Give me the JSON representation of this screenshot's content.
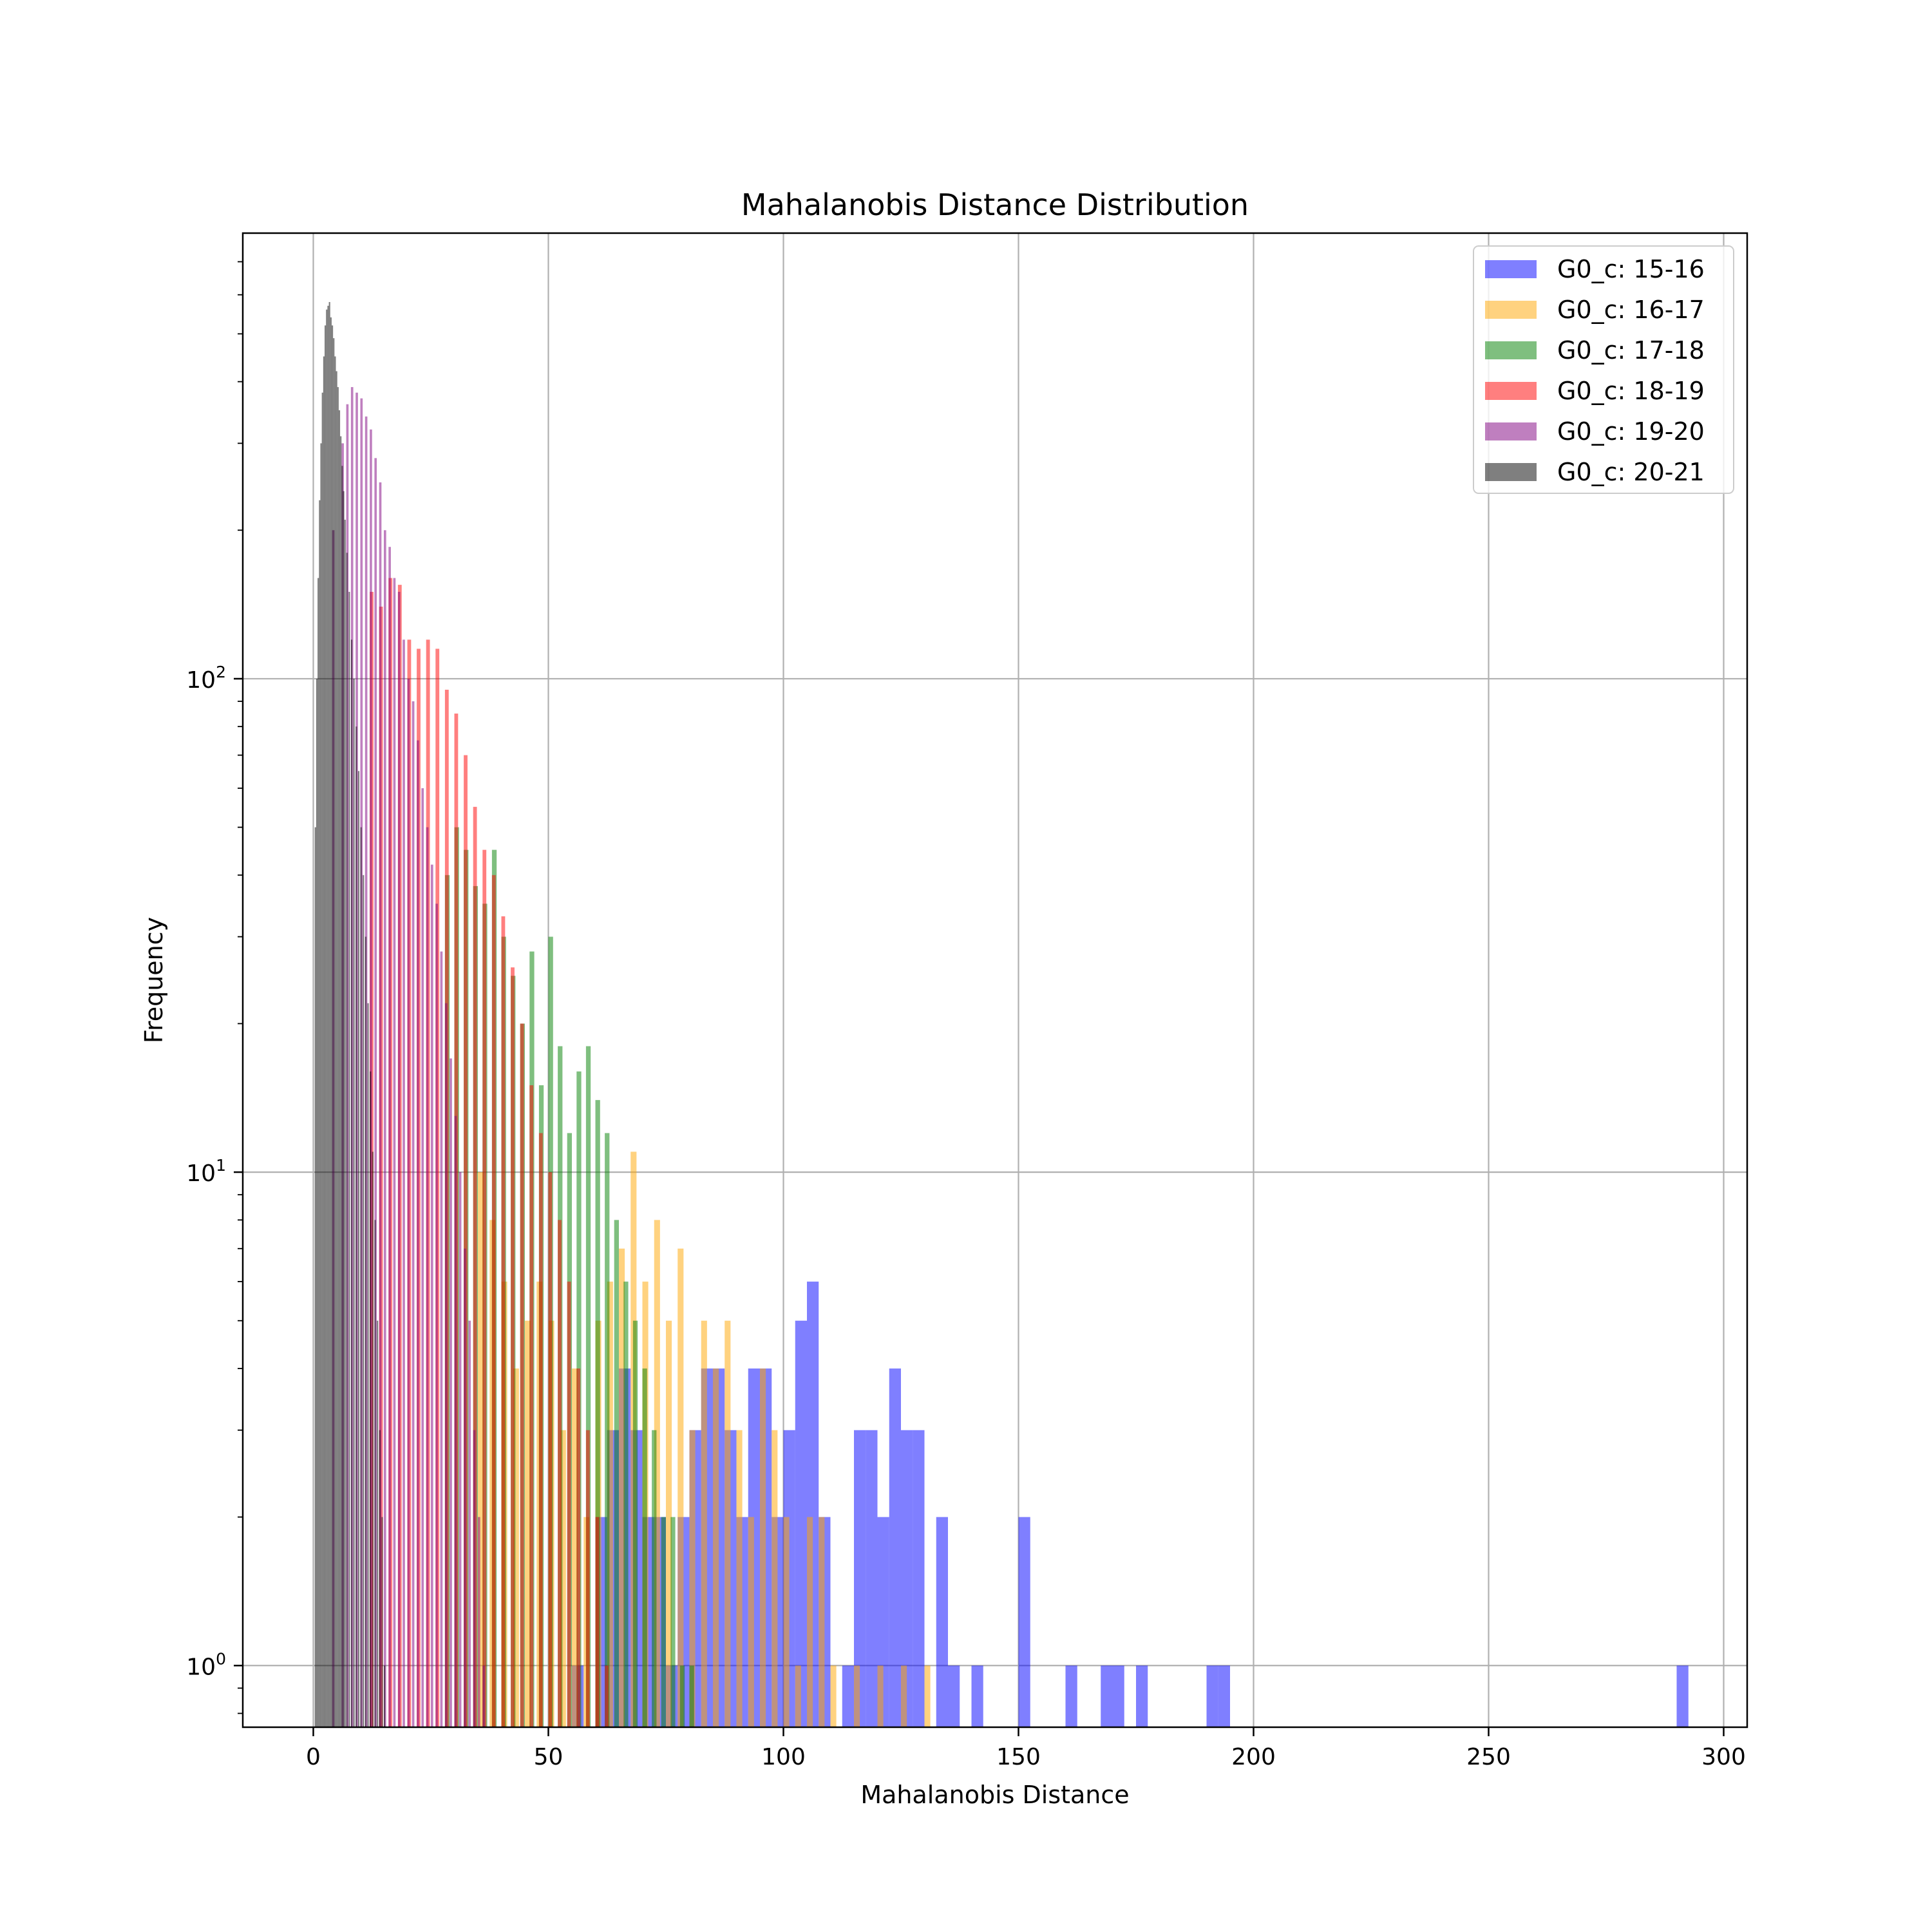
{
  "chart_data": {
    "type": "bar",
    "title": "Mahalanobis Distance Distribution",
    "xlabel": "Mahalanobis Distance",
    "ylabel": "Frequency",
    "yscale": "log",
    "xlim": [
      -15,
      305
    ],
    "ylim": [
      0.75,
      800
    ],
    "xticks": [
      0,
      50,
      100,
      150,
      200,
      250,
      300
    ],
    "xtick_labels": [
      "0",
      "50",
      "100",
      "150",
      "200",
      "250",
      "300"
    ],
    "yticks": [
      1,
      10,
      100
    ],
    "ytick_labels": [
      {
        "base": "10",
        "exp": "0"
      },
      {
        "base": "10",
        "exp": "1"
      },
      {
        "base": "10",
        "exp": "2"
      }
    ],
    "grid": true,
    "legend_position": "top-right",
    "series": [
      {
        "name": "G0_c: 15-16",
        "color": "#0000ff",
        "alpha": 0.5,
        "bin_width": 2.5,
        "bins": [
          [
            55,
            1
          ],
          [
            60,
            2
          ],
          [
            62.5,
            3
          ],
          [
            65,
            4
          ],
          [
            67.5,
            3
          ],
          [
            70,
            2
          ],
          [
            72.5,
            2
          ],
          [
            75,
            1
          ],
          [
            77.5,
            2
          ],
          [
            80,
            3
          ],
          [
            82.5,
            4
          ],
          [
            85,
            4
          ],
          [
            87.5,
            3
          ],
          [
            90,
            2
          ],
          [
            92.5,
            4
          ],
          [
            95,
            4
          ],
          [
            97.5,
            2
          ],
          [
            100,
            3
          ],
          [
            102.5,
            5
          ],
          [
            105,
            6
          ],
          [
            107.5,
            2
          ],
          [
            112.5,
            1
          ],
          [
            115,
            3
          ],
          [
            117.5,
            3
          ],
          [
            120,
            2
          ],
          [
            122.5,
            4
          ],
          [
            125,
            3
          ],
          [
            127.5,
            3
          ],
          [
            132.5,
            2
          ],
          [
            135,
            1
          ],
          [
            140,
            1
          ],
          [
            150,
            2
          ],
          [
            160,
            1
          ],
          [
            167.5,
            1
          ],
          [
            170,
            1
          ],
          [
            175,
            1
          ],
          [
            190,
            1
          ],
          [
            192.5,
            1
          ],
          [
            290,
            1
          ]
        ]
      },
      {
        "name": "G0_c: 16-17",
        "color": "#ffa500",
        "alpha": 0.5,
        "bin_width": 1.25,
        "bins": [
          [
            35,
            10
          ],
          [
            37.5,
            8
          ],
          [
            40,
            6
          ],
          [
            42.5,
            4
          ],
          [
            45,
            5
          ],
          [
            47.5,
            6
          ],
          [
            50,
            5
          ],
          [
            52.5,
            3
          ],
          [
            55,
            4
          ],
          [
            57.5,
            2
          ],
          [
            60,
            5
          ],
          [
            62.5,
            6
          ],
          [
            65,
            7
          ],
          [
            67.5,
            11
          ],
          [
            70,
            6
          ],
          [
            72.5,
            8
          ],
          [
            75,
            5
          ],
          [
            77.5,
            7
          ],
          [
            80,
            3
          ],
          [
            82.5,
            5
          ],
          [
            85,
            4
          ],
          [
            87.5,
            5
          ],
          [
            90,
            3
          ],
          [
            92.5,
            2
          ],
          [
            95,
            4
          ],
          [
            97.5,
            3
          ],
          [
            100,
            2
          ],
          [
            102.5,
            1
          ],
          [
            105,
            2
          ],
          [
            107.5,
            2
          ],
          [
            110,
            1
          ],
          [
            115,
            1
          ],
          [
            120,
            1
          ],
          [
            125,
            1
          ],
          [
            130,
            1
          ]
        ]
      },
      {
        "name": "G0_c: 17-18",
        "color": "#008000",
        "alpha": 0.5,
        "bin_width": 1.0,
        "bins": [
          [
            28,
            40
          ],
          [
            30,
            50
          ],
          [
            32,
            45
          ],
          [
            34,
            38
          ],
          [
            36,
            35
          ],
          [
            38,
            45
          ],
          [
            40,
            30
          ],
          [
            42,
            25
          ],
          [
            44,
            20
          ],
          [
            46,
            28
          ],
          [
            48,
            15
          ],
          [
            50,
            30
          ],
          [
            52,
            18
          ],
          [
            54,
            12
          ],
          [
            56,
            16
          ],
          [
            58,
            18
          ],
          [
            60,
            14
          ],
          [
            62,
            12
          ],
          [
            64,
            8
          ],
          [
            66,
            6
          ],
          [
            68,
            5
          ],
          [
            70,
            4
          ],
          [
            72,
            3
          ],
          [
            74,
            2
          ],
          [
            76,
            2
          ],
          [
            78,
            1
          ],
          [
            80,
            1
          ]
        ]
      },
      {
        "name": "G0_c: 18-19",
        "color": "#ff0000",
        "alpha": 0.5,
        "bin_width": 0.8,
        "bins": [
          [
            12,
            150
          ],
          [
            14,
            140
          ],
          [
            16,
            160
          ],
          [
            18,
            155
          ],
          [
            20,
            120
          ],
          [
            22,
            115
          ],
          [
            24,
            120
          ],
          [
            26,
            115
          ],
          [
            28,
            95
          ],
          [
            30,
            85
          ],
          [
            32,
            70
          ],
          [
            34,
            55
          ],
          [
            36,
            45
          ],
          [
            38,
            40
          ],
          [
            40,
            33
          ],
          [
            42,
            26
          ],
          [
            44,
            20
          ],
          [
            46,
            15
          ],
          [
            48,
            12
          ],
          [
            50,
            10
          ],
          [
            52,
            8
          ],
          [
            54,
            6
          ],
          [
            56,
            4
          ],
          [
            58,
            3
          ],
          [
            60,
            2
          ],
          [
            62,
            1
          ]
        ]
      },
      {
        "name": "G0_c: 19-20",
        "color": "#800080",
        "alpha": 0.5,
        "bin_width": 0.5,
        "bins": [
          [
            4,
            200
          ],
          [
            6,
            300
          ],
          [
            7,
            360
          ],
          [
            8,
            390
          ],
          [
            9,
            380
          ],
          [
            10,
            370
          ],
          [
            11,
            340
          ],
          [
            12,
            320
          ],
          [
            13,
            280
          ],
          [
            14,
            250
          ],
          [
            15,
            200
          ],
          [
            16,
            185
          ],
          [
            17,
            160
          ],
          [
            18,
            150
          ],
          [
            19,
            120
          ],
          [
            20,
            100
          ],
          [
            21,
            90
          ],
          [
            22,
            75
          ],
          [
            23,
            60
          ],
          [
            24,
            50
          ],
          [
            25,
            42
          ],
          [
            26,
            35
          ],
          [
            27,
            28
          ],
          [
            28,
            22
          ],
          [
            29,
            17
          ],
          [
            30,
            13
          ],
          [
            31,
            10
          ],
          [
            32,
            7
          ],
          [
            33,
            5
          ],
          [
            34,
            3
          ],
          [
            35,
            2
          ],
          [
            36,
            1
          ]
        ]
      },
      {
        "name": "G0_c: 20-21",
        "color": "#000000",
        "alpha": 0.5,
        "bin_width": 0.3,
        "bins": [
          [
            0.3,
            50
          ],
          [
            0.6,
            100
          ],
          [
            0.9,
            160
          ],
          [
            1.2,
            230
          ],
          [
            1.5,
            300
          ],
          [
            1.8,
            380
          ],
          [
            2.1,
            450
          ],
          [
            2.4,
            520
          ],
          [
            2.7,
            560
          ],
          [
            3,
            570
          ],
          [
            3.3,
            580
          ],
          [
            3.6,
            540
          ],
          [
            3.9,
            520
          ],
          [
            4.2,
            490
          ],
          [
            4.5,
            450
          ],
          [
            4.8,
            420
          ],
          [
            5.1,
            390
          ],
          [
            5.4,
            350
          ],
          [
            5.7,
            310
          ],
          [
            6,
            270
          ],
          [
            6.3,
            240
          ],
          [
            6.6,
            210
          ],
          [
            7,
            180
          ],
          [
            7.5,
            150
          ],
          [
            8,
            120
          ],
          [
            8.5,
            100
          ],
          [
            9,
            80
          ],
          [
            9.5,
            65
          ],
          [
            10,
            50
          ],
          [
            10.5,
            40
          ],
          [
            11,
            30
          ],
          [
            11.5,
            22
          ],
          [
            12,
            16
          ],
          [
            12.5,
            11
          ],
          [
            13,
            8
          ],
          [
            13.5,
            5
          ],
          [
            14,
            3
          ],
          [
            14.5,
            2
          ],
          [
            15,
            1
          ]
        ]
      }
    ]
  }
}
